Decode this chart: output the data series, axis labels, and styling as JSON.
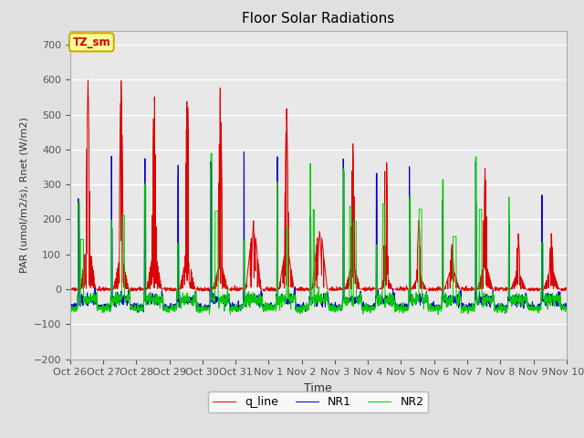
{
  "title": "Floor Solar Radiations",
  "xlabel": "Time",
  "ylabel": "PAR (umol/m2/s), Rnet (W/m2)",
  "ylim": [
    -200,
    740
  ],
  "yticks": [
    -200,
    -100,
    0,
    100,
    200,
    300,
    400,
    500,
    600,
    700
  ],
  "xtick_labels": [
    "Oct 26",
    "Oct 27",
    "Oct 28",
    "Oct 29",
    "Oct 30",
    "Oct 31",
    "Nov 1",
    "Nov 2",
    "Nov 3",
    "Nov 4",
    "Nov 5",
    "Nov 6",
    "Nov 7",
    "Nov 8",
    "Nov 9",
    "Nov 10"
  ],
  "legend_labels": [
    "q_line",
    "NR1",
    "NR2"
  ],
  "line_colors": [
    "#dd0000",
    "#0000cc",
    "#00cc00"
  ],
  "bg_color": "#e0e0e0",
  "plot_bg_color": "#e8e8e8",
  "annotation_text": "TZ_sm",
  "annotation_bg": "#ffff99",
  "annotation_border": "#ccaa00",
  "figsize": [
    6.4,
    4.8
  ],
  "dpi": 100
}
